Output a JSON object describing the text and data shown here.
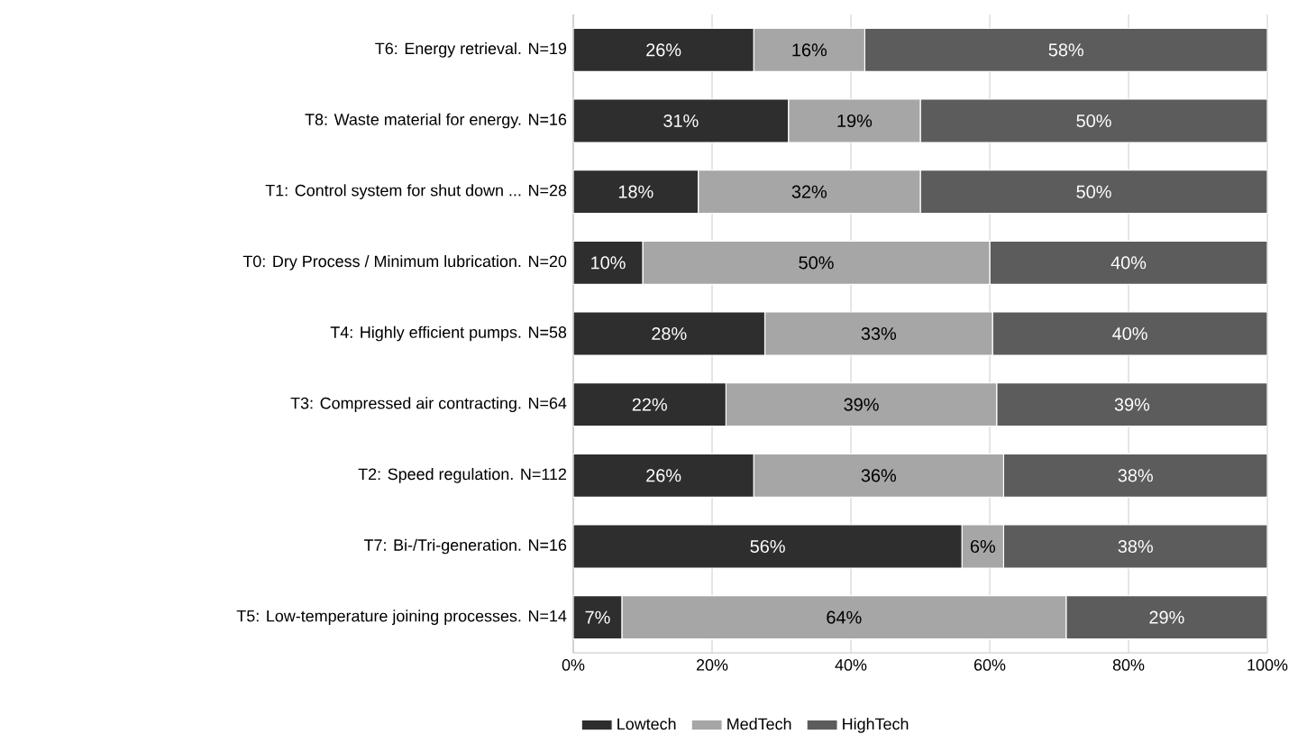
{
  "chart_data": {
    "type": "bar",
    "orientation": "horizontal",
    "stacked": true,
    "categories": [
      "T6: Energy retrieval. N=19",
      "T8: Waste material for energy. N=16",
      "T1: Control system for shut down ... N=28",
      "T0: Dry Process / Minimum lubrication. N=20",
      "T4: Highly efficient pumps. N=58",
      "T3: Compressed air contracting. N=64",
      "T2: Speed regulation. N=112",
      "T7: Bi-/Tri-generation. N=16",
      "T5: Low-temperature joining processes. N=14"
    ],
    "series": [
      {
        "name": "Lowtech",
        "color": "#2e2e2e",
        "values": [
          26,
          31,
          18,
          10,
          27.6,
          22,
          26,
          56,
          7
        ],
        "value_labels": [
          "26%",
          "31%",
          "18%",
          "10%",
          "28%",
          "22%",
          "26%",
          "56%",
          "7%"
        ]
      },
      {
        "name": "MedTech",
        "color": "#a6a6a6",
        "values": [
          16,
          19,
          32,
          50,
          32.8,
          39,
          36,
          6,
          64
        ],
        "value_labels": [
          "16%",
          "19%",
          "32%",
          "50%",
          "33%",
          "39%",
          "36%",
          "6%",
          "64%"
        ]
      },
      {
        "name": "HighTech",
        "color": "#5c5c5c",
        "values": [
          58,
          50,
          50,
          40,
          39.6,
          39,
          38,
          38,
          29
        ],
        "value_labels": [
          "58%",
          "50%",
          "50%",
          "40%",
          "40%",
          "39%",
          "38%",
          "38%",
          "29%"
        ]
      }
    ],
    "xlim": [
      0,
      100
    ],
    "xticks": [
      {
        "value": 0,
        "label": "0%"
      },
      {
        "value": 20,
        "label": "20%"
      },
      {
        "value": 40,
        "label": "40%"
      },
      {
        "value": 60,
        "label": "60%"
      },
      {
        "value": 80,
        "label": "80%"
      },
      {
        "value": 100,
        "label": "100%"
      }
    ],
    "grid": "x",
    "legend": "bottom"
  }
}
